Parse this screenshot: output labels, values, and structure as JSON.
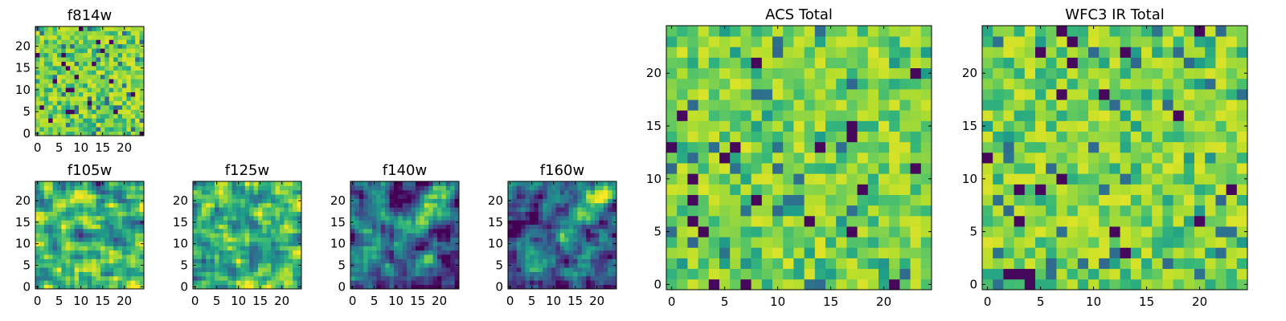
{
  "chart_data": [
    {
      "type": "heatmap",
      "title": "f814w",
      "xticks": [
        "0",
        "5",
        "10",
        "15",
        "20"
      ],
      "yticks": [
        "0",
        "5",
        "10",
        "15",
        "20"
      ],
      "xlim": [
        -0.5,
        24.5
      ],
      "ylim": [
        -0.5,
        24.5
      ],
      "grid": false,
      "colormap": "viridis",
      "seed": 17,
      "style": "noise"
    },
    {
      "type": "heatmap",
      "title": "f105w",
      "xticks": [
        "0",
        "5",
        "10",
        "15",
        "20"
      ],
      "yticks": [
        "0",
        "5",
        "10",
        "15",
        "20"
      ],
      "xlim": [
        -0.5,
        24.5
      ],
      "ylim": [
        -0.5,
        24.5
      ],
      "grid": false,
      "colormap": "viridis",
      "seed": 29,
      "style": "smooth"
    },
    {
      "type": "heatmap",
      "title": "f125w",
      "xticks": [
        "0",
        "5",
        "10",
        "15",
        "20"
      ],
      "yticks": [
        "0",
        "5",
        "10",
        "15",
        "20"
      ],
      "xlim": [
        -0.5,
        24.5
      ],
      "ylim": [
        -0.5,
        24.5
      ],
      "grid": false,
      "colormap": "viridis",
      "seed": 41,
      "style": "smooth"
    },
    {
      "type": "heatmap",
      "title": "f140w",
      "xticks": [
        "0",
        "5",
        "10",
        "15",
        "20"
      ],
      "yticks": [
        "0",
        "5",
        "10",
        "15",
        "20"
      ],
      "xlim": [
        -0.5,
        24.5
      ],
      "ylim": [
        -0.5,
        24.5
      ],
      "grid": false,
      "colormap": "viridis",
      "seed": 53,
      "style": "diagonal"
    },
    {
      "type": "heatmap",
      "title": "f160w",
      "xticks": [
        "0",
        "5",
        "10",
        "15",
        "20"
      ],
      "yticks": [
        "0",
        "5",
        "10",
        "15",
        "20"
      ],
      "xlim": [
        -0.5,
        24.5
      ],
      "ylim": [
        -0.5,
        24.5
      ],
      "grid": false,
      "colormap": "viridis",
      "seed": 67,
      "style": "diagonal"
    },
    {
      "type": "heatmap",
      "title": "ACS Total",
      "xticks": [
        "0",
        "5",
        "10",
        "15",
        "20"
      ],
      "yticks": [
        "0",
        "5",
        "10",
        "15",
        "20"
      ],
      "xlim": [
        -0.5,
        24.5
      ],
      "ylim": [
        -0.5,
        24.5
      ],
      "grid": false,
      "colormap": "viridis",
      "seed": 79,
      "style": "noise"
    },
    {
      "type": "heatmap",
      "title": "WFC3 IR Total",
      "xticks": [
        "0",
        "5",
        "10",
        "15",
        "20"
      ],
      "yticks": [
        "0",
        "5",
        "10",
        "15",
        "20"
      ],
      "xlim": [
        -0.5,
        24.5
      ],
      "ylim": [
        -0.5,
        24.5
      ],
      "grid": false,
      "colormap": "viridis",
      "seed": 97,
      "style": "noise"
    }
  ]
}
